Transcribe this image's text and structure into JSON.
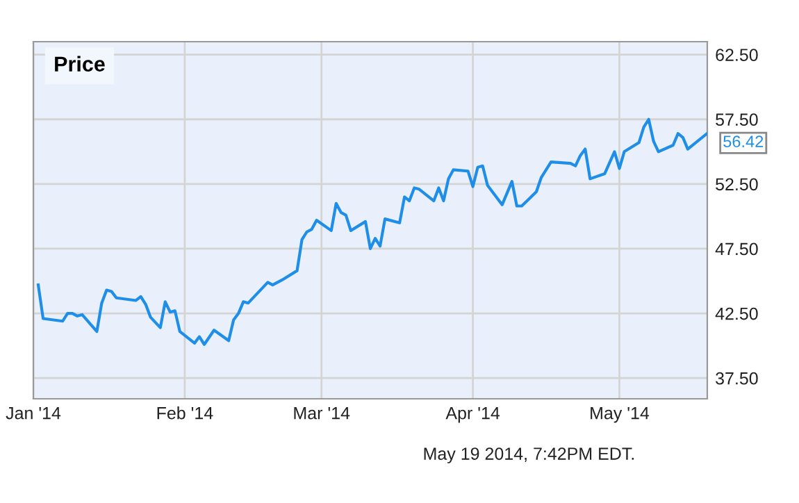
{
  "chart_data": {
    "type": "line",
    "title": "Price",
    "x": [
      "2014-01-02",
      "2014-01-03",
      "2014-01-07",
      "2014-01-08",
      "2014-01-09",
      "2014-01-10",
      "2014-01-11",
      "2014-01-14",
      "2014-01-15",
      "2014-01-16",
      "2014-01-17",
      "2014-01-18",
      "2014-01-22",
      "2014-01-23",
      "2014-01-24",
      "2014-01-25",
      "2014-01-27",
      "2014-01-28",
      "2014-01-29",
      "2014-01-30",
      "2014-01-31",
      "2014-02-03",
      "2014-02-04",
      "2014-02-05",
      "2014-02-07",
      "2014-02-10",
      "2014-02-11",
      "2014-02-12",
      "2014-02-13",
      "2014-02-14",
      "2014-02-18",
      "2014-02-19",
      "2014-02-21",
      "2014-02-24",
      "2014-02-25",
      "2014-02-26",
      "2014-02-27",
      "2014-02-28",
      "2014-03-03",
      "2014-03-04",
      "2014-03-05",
      "2014-03-06",
      "2014-03-07",
      "2014-03-10",
      "2014-03-11",
      "2014-03-12",
      "2014-03-13",
      "2014-03-14",
      "2014-03-17",
      "2014-03-18",
      "2014-03-19",
      "2014-03-20",
      "2014-03-21",
      "2014-03-24",
      "2014-03-25",
      "2014-03-26",
      "2014-03-27",
      "2014-03-28",
      "2014-03-31",
      "2014-04-01",
      "2014-04-02",
      "2014-04-03",
      "2014-04-04",
      "2014-04-07",
      "2014-04-09",
      "2014-04-10",
      "2014-04-11",
      "2014-04-14",
      "2014-04-15",
      "2014-04-17",
      "2014-04-21",
      "2014-04-22",
      "2014-04-23",
      "2014-04-24",
      "2014-04-25",
      "2014-04-28",
      "2014-04-30",
      "2014-05-01",
      "2014-05-02",
      "2014-05-05",
      "2014-05-06",
      "2014-05-07",
      "2014-05-08",
      "2014-05-09",
      "2014-05-12",
      "2014-05-13",
      "2014-05-14",
      "2014-05-15",
      "2014-05-19"
    ],
    "series": [
      {
        "color": "#1f8ee8",
        "values": [
          44.7,
          42.1,
          41.9,
          42.5,
          42.5,
          42.3,
          42.4,
          41.1,
          43.3,
          44.3,
          44.2,
          43.7,
          43.5,
          43.8,
          43.2,
          42.2,
          41.4,
          43.4,
          42.6,
          42.7,
          41.1,
          40.2,
          40.7,
          40.1,
          41.2,
          40.4,
          42.0,
          42.5,
          43.4,
          43.3,
          44.9,
          44.7,
          45.1,
          45.8,
          48.2,
          48.8,
          49.0,
          49.7,
          48.9,
          51.0,
          50.3,
          50.1,
          48.9,
          49.6,
          47.5,
          48.3,
          47.7,
          49.8,
          49.5,
          51.5,
          51.2,
          52.2,
          52.1,
          51.2,
          52.2,
          51.2,
          52.9,
          53.6,
          53.5,
          52.3,
          53.8,
          53.9,
          52.4,
          50.9,
          52.7,
          50.8,
          50.8,
          51.9,
          53.0,
          54.2,
          54.1,
          53.9,
          54.7,
          55.2,
          52.9,
          53.3,
          55.0,
          53.7,
          55.0,
          55.7,
          56.9,
          57.5,
          55.8,
          55.0,
          55.5,
          56.4,
          56.1,
          55.2,
          56.42
        ],
        "value_labels": [
          null,
          null,
          null,
          null,
          null,
          null,
          null,
          null,
          null,
          null,
          null,
          null,
          null,
          null,
          null,
          null,
          null,
          null,
          null,
          null,
          null,
          null,
          null,
          null,
          null,
          null,
          null,
          null,
          null,
          null,
          null,
          null,
          null,
          null,
          null,
          null,
          null,
          null,
          null,
          null,
          null,
          null,
          null,
          null,
          null,
          null,
          null,
          null,
          null,
          null,
          null,
          null,
          null,
          null,
          null,
          null,
          null,
          null,
          null,
          null,
          null,
          null,
          null,
          null,
          null,
          null,
          null,
          null,
          null,
          null,
          null,
          null,
          null,
          null,
          null,
          null,
          null,
          null,
          null,
          null,
          null,
          null,
          null,
          null,
          null,
          null,
          null,
          null,
          "56.42"
        ]
      }
    ],
    "xlim": [
      "2014-01-01",
      "2014-05-19"
    ],
    "xticks": [
      {
        "value": "2014-01-01",
        "label": "Jan '14"
      },
      {
        "value": "2014-02-01",
        "label": "Feb '14"
      },
      {
        "value": "2014-03-01",
        "label": "Mar '14"
      },
      {
        "value": "2014-04-01",
        "label": "Apr '14"
      },
      {
        "value": "2014-05-01",
        "label": "May '14"
      }
    ],
    "ylim": [
      35.9,
      63.5
    ],
    "yticks": [
      {
        "value": 37.5,
        "label": "37.50"
      },
      {
        "value": 42.5,
        "label": "42.50"
      },
      {
        "value": 47.5,
        "label": "47.50"
      },
      {
        "value": 52.5,
        "label": "52.50"
      },
      {
        "value": 57.5,
        "label": "57.50"
      },
      {
        "value": 62.5,
        "label": "62.50"
      }
    ],
    "grid": true,
    "marker": "none",
    "line_style": "solid",
    "annotations": [
      "May 19 2014, 7:42PM EDT."
    ]
  }
}
